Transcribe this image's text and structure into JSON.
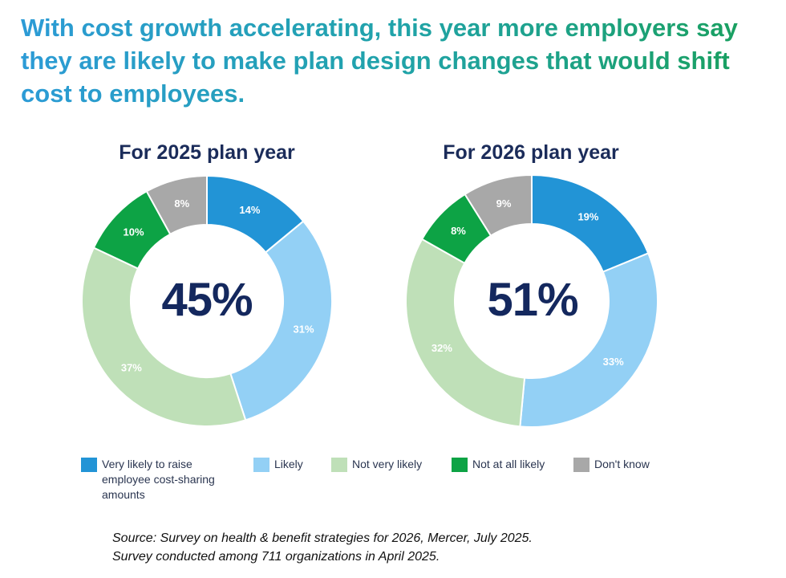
{
  "headline": {
    "line1": "With cost growth accelerating, this year more employers say",
    "line2": "they are likely to make plan design changes that would shift",
    "line3": "cost to employees."
  },
  "legend": [
    {
      "label": "Very likely to raise employee cost-sharing amounts",
      "color": "#2294d6"
    },
    {
      "label": "Likely",
      "color": "#93d0f5"
    },
    {
      "label": "Not very likely",
      "color": "#bfe0b8"
    },
    {
      "label": "Not at all likely",
      "color": "#0da345"
    },
    {
      "label": "Don't know",
      "color": "#a8a8a8"
    }
  ],
  "chart_data": [
    {
      "type": "pie",
      "title": "For 2025 plan year",
      "center_label": "45%",
      "categories": [
        "Very likely to raise employee cost-sharing amounts",
        "Likely",
        "Not very likely",
        "Not at all likely",
        "Don't know"
      ],
      "values": [
        14,
        31,
        37,
        10,
        8
      ],
      "data_labels": [
        "14%",
        "31%",
        "37%",
        "10%",
        "8%"
      ],
      "colors": [
        "#2294d6",
        "#93d0f5",
        "#bfe0b8",
        "#0da345",
        "#a8a8a8"
      ]
    },
    {
      "type": "pie",
      "title": "For 2026 plan year",
      "center_label": "51%",
      "categories": [
        "Very likely to raise employee cost-sharing amounts",
        "Likely",
        "Not very likely",
        "Not at all likely",
        "Don't know"
      ],
      "values": [
        19,
        33,
        32,
        8,
        9
      ],
      "data_labels": [
        "19%",
        "33%",
        "32%",
        "8%",
        "9%"
      ],
      "colors": [
        "#2294d6",
        "#93d0f5",
        "#bfe0b8",
        "#0da345",
        "#a8a8a8"
      ]
    }
  ],
  "source": {
    "line1": "Source: Survey on health & benefit strategies for 2026, Mercer, July 2025.",
    "line2": "Survey conducted among  711 organizations in April 2025."
  }
}
